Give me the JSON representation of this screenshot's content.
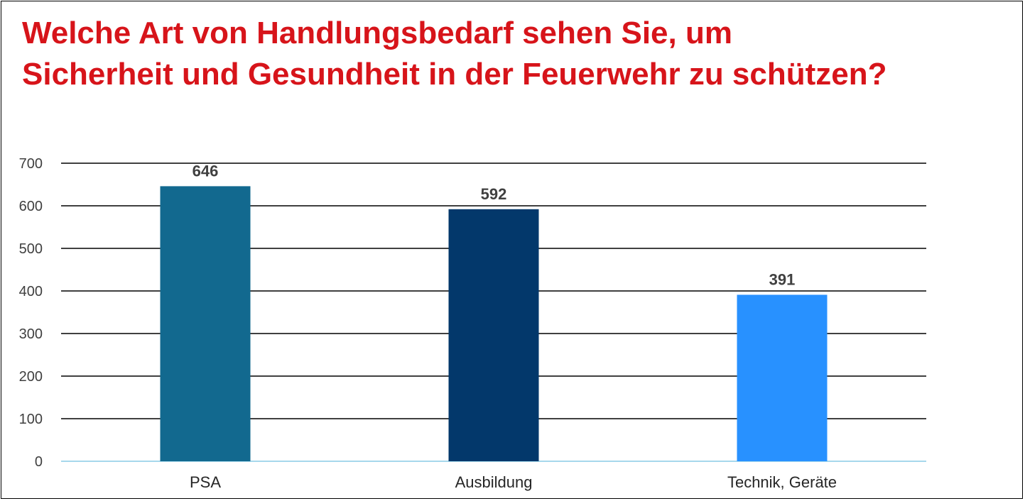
{
  "title_lines": [
    "Welche Art von Handlungsbedarf sehen Sie, um",
    "Sicherheit und Gesundheit in der Feuerwehr zu schützen?"
  ],
  "colors": {
    "title": "#d7141a",
    "gridline": "#000000",
    "baseline": "#a6d8ec"
  },
  "chart_data": {
    "type": "bar",
    "title": "Welche Art von Handlungsbedarf sehen Sie, um Sicherheit und Gesundheit in der Feuerwehr zu schützen?",
    "categories": [
      "PSA",
      "Ausbildung",
      "Technik, Geräte"
    ],
    "values": [
      646,
      592,
      391
    ],
    "value_labels": [
      "646",
      "592",
      "391"
    ],
    "bar_colors": [
      "#12698f",
      "#03386b",
      "#2891ff"
    ],
    "ylim": [
      0,
      700
    ],
    "yticks": [
      "0",
      "100",
      "200",
      "300",
      "400",
      "500",
      "600",
      "700"
    ],
    "xlabel": "",
    "ylabel": "",
    "grid": true,
    "legend": "none"
  }
}
